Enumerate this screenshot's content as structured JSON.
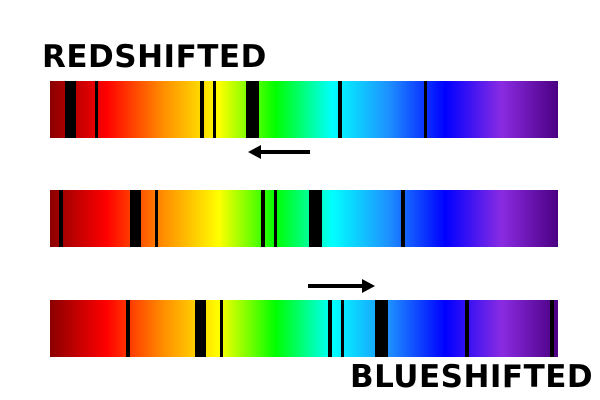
{
  "labels": {
    "top": "REDSHIFTED",
    "bottom": "BLUESHIFTED"
  },
  "colors": {
    "spectrum": [
      "#8b0000",
      "#ff0000",
      "#ff8c00",
      "#ffff00",
      "#00ff00",
      "#00ffff",
      "#1e90ff",
      "#0000ff",
      "#8a2be2",
      "#4b0082"
    ],
    "absorption_line": "#000000",
    "arrow": "#000000"
  },
  "spectra": [
    {
      "name": "redshifted",
      "line_positions": [
        0.03,
        0.088,
        0.296,
        0.32,
        0.386,
        0.566,
        0.736
      ],
      "line_widths": [
        0.022,
        0.006,
        0.008,
        0.006,
        0.026,
        0.008,
        0.006
      ]
    },
    {
      "name": "rest",
      "line_positions": [
        0.018,
        0.158,
        0.206,
        0.416,
        0.44,
        0.51,
        0.69
      ],
      "line_widths": [
        0.008,
        0.022,
        0.006,
        0.008,
        0.006,
        0.026,
        0.008
      ]
    },
    {
      "name": "blueshifted",
      "line_positions": [
        0.15,
        0.286,
        0.334,
        0.548,
        0.572,
        0.64,
        0.816,
        0.984
      ],
      "line_widths": [
        0.008,
        0.022,
        0.006,
        0.008,
        0.006,
        0.026,
        0.008,
        0.008
      ]
    }
  ],
  "arrows": [
    {
      "name": "shift-toward-red",
      "direction": "left"
    },
    {
      "name": "shift-toward-blue",
      "direction": "right"
    }
  ]
}
